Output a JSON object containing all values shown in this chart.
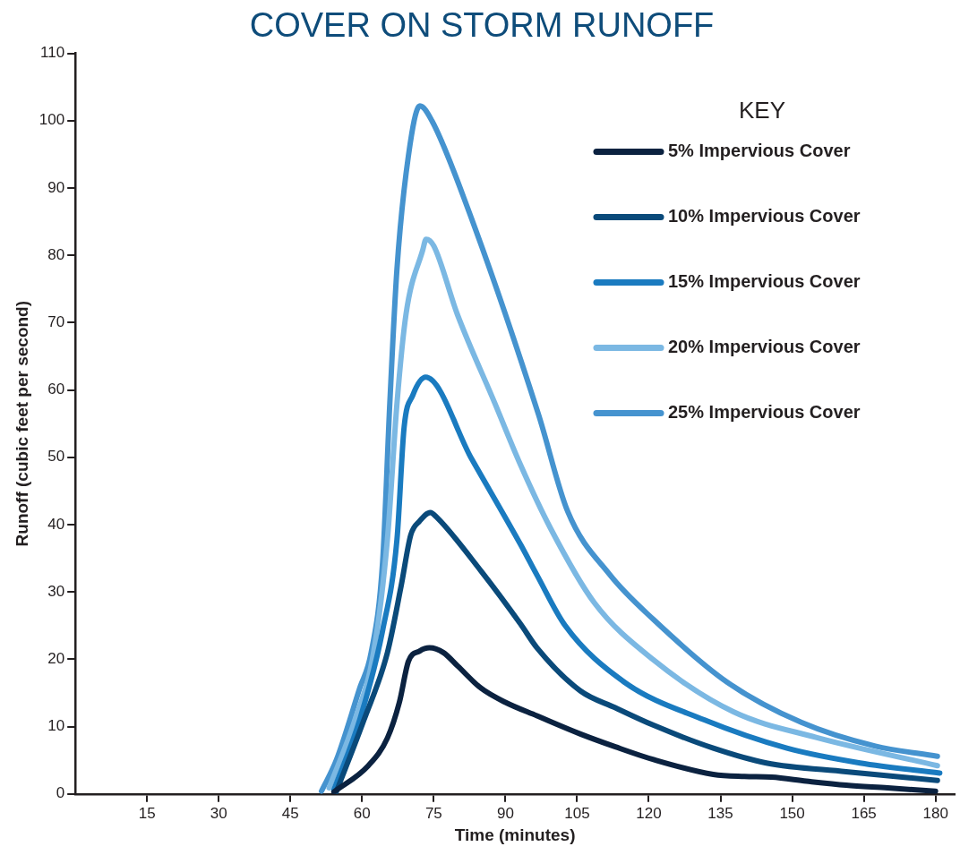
{
  "chart_data": {
    "type": "line",
    "title": "COVER ON STORM RUNOFF",
    "xlabel": "Time (minutes)",
    "ylabel": "Runoff (cubic feet per second)",
    "legend_title": "KEY",
    "legend": "top right",
    "grid": false,
    "marker": "none",
    "line_style": "solid",
    "xlim": [
      0,
      184
    ],
    "xticks": [
      15,
      30,
      45,
      60,
      75,
      90,
      105,
      120,
      135,
      150,
      165,
      180
    ],
    "ylim": [
      0,
      110
    ],
    "yticks": [
      0,
      10,
      20,
      30,
      40,
      50,
      60,
      70,
      80,
      90,
      100,
      110
    ],
    "series": [
      {
        "name": "5% Impervious Cover",
        "color": "#0b2240",
        "x": [
          54.1,
          61.3,
          65.3,
          67.8,
          69.7,
          72,
          74.1,
          77,
          80,
          84.9,
          90,
          96.6,
          105.7,
          113,
          121,
          133.5,
          140,
          145.7,
          153,
          161.3,
          170,
          180
        ],
        "values": [
          0.3,
          4.2,
          8.3,
          13.6,
          19.7,
          21.2,
          21.7,
          21,
          19,
          15.7,
          13.6,
          11.6,
          8.9,
          7,
          5.1,
          2.9,
          2.6,
          2.5,
          1.9,
          1.3,
          0.9,
          0.4
        ]
      },
      {
        "name": "10% Impervious Cover",
        "color": "#0a4a7a",
        "x": [
          54.6,
          60.4,
          65.3,
          68.2,
          70.2,
          72,
          74.3,
          75.6,
          84.9,
          93.2,
          96.6,
          105.7,
          113,
          121,
          133.5,
          144.6,
          161.3,
          180.4
        ],
        "values": [
          0.3,
          11,
          21,
          31,
          38.5,
          40.5,
          41.8,
          41.1,
          33.1,
          25.2,
          21.7,
          15.3,
          12.8,
          10.2,
          6.8,
          4.6,
          3.3,
          2
        ]
      },
      {
        "name": "15% Impervious Cover",
        "color": "#1a7bc0",
        "x": [
          54.1,
          59.5,
          64.3,
          67.3,
          68.8,
          70.6,
          73.3,
          82.9,
          93.2,
          96.6,
          102.5,
          114.9,
          131.6,
          148.9,
          164.2,
          180.9
        ],
        "values": [
          0.6,
          11,
          24.3,
          37.8,
          54.5,
          59.2,
          61.9,
          49.8,
          37,
          32.5,
          25,
          16.6,
          11,
          6.8,
          4.6,
          3.1
        ]
      },
      {
        "name": "20% Impervious Cover",
        "color": "#7bb8e3",
        "x": [
          53.1,
          58.5,
          62.4,
          65.3,
          67.3,
          69.2,
          72.7,
          73.4,
          75,
          79.9,
          87.8,
          93.2,
          99.4,
          108.6,
          121,
          137.7,
          155,
          180.4
        ],
        "values": [
          0.9,
          11,
          21,
          37.8,
          58,
          71.3,
          80.8,
          82.4,
          81.4,
          71.3,
          58,
          48.8,
          39.5,
          28.4,
          19.9,
          12.2,
          8.4,
          4.2
        ]
      },
      {
        "name": "25% Impervious Cover",
        "color": "#4593cf",
        "x": [
          51.5,
          54.6,
          59.5,
          61.9,
          64.3,
          65.8,
          67.3,
          69.7,
          72.1,
          74.6,
          82.1,
          96.9,
          103,
          111.8,
          121,
          136.4,
          152,
          167.4,
          180.4
        ],
        "values": [
          0.4,
          5,
          15.7,
          21,
          34.5,
          58,
          78,
          94.8,
          102.2,
          100,
          87,
          56.4,
          42,
          32.6,
          25.9,
          16.6,
          10.6,
          7.1,
          5.6
        ]
      }
    ]
  }
}
